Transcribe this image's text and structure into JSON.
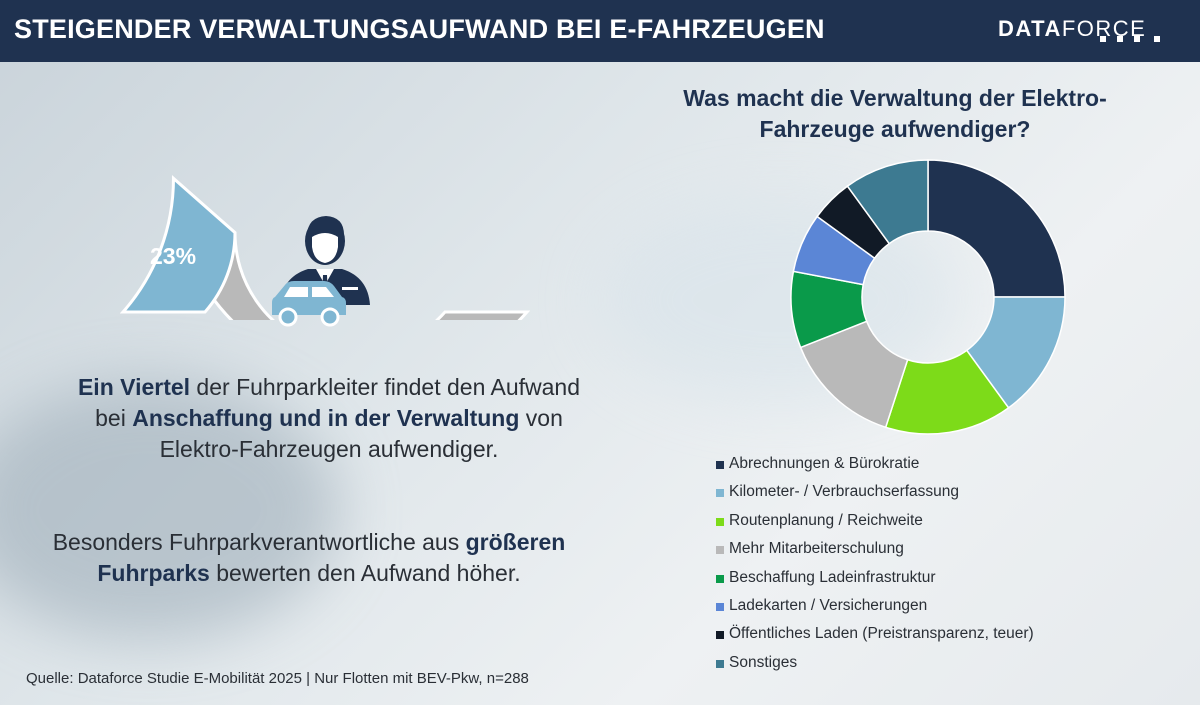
{
  "header": {
    "title": "STEIGENDER VERWALTUNGSAUFWAND BEI E-FAHRZEUGEN",
    "logo_bold": "DATA",
    "logo_light": "FORCE"
  },
  "gauge": {
    "value_percent": 23,
    "label": "23%",
    "colors": {
      "value": "#7fb6d2",
      "rest": "#b9b9b9",
      "outline": "#ffffff"
    }
  },
  "statement1": {
    "b1": "Ein Viertel",
    "t1": " der Fuhrparkleiter findet den Aufwand bei ",
    "b2": "Anschaffung und in der Verwaltung",
    "t2": " von Elektro-Fahrzeugen aufwendiger."
  },
  "statement2": {
    "t1": "Besonders Fuhrparkverantwortliche aus ",
    "b1": "größeren Fuhrparks",
    "t2": " bewerten den Aufwand höher."
  },
  "source": "Quelle: Dataforce Studie E-Mobilität 2025 | Nur Flotten mit BEV-Pkw, n=288",
  "chart_data": {
    "type": "pie",
    "subtype": "donut",
    "title": "Was macht die Verwaltung der Elektro-Fahrzeuge aufwendiger?",
    "legend_position": "bottom",
    "categories": [
      "Abrechnungen & Bürokratie",
      "Kilometer- / Verbrauchserfassung",
      "Routenplanung / Reichweite",
      "Mehr Mitarbeiterschulung",
      "Beschaffung Ladeinfrastruktur",
      "Ladekarten / Versicherungen",
      "Öffentliches Laden (Preistransparenz, teuer)",
      "Sonstiges"
    ],
    "values": [
      25,
      15,
      15,
      14,
      9,
      7,
      5,
      10
    ],
    "colors": [
      "#1f3250",
      "#7fb6d2",
      "#7ddb19",
      "#b9b9b9",
      "#0a9a4a",
      "#5b86d6",
      "#111a26",
      "#3d7a91"
    ]
  }
}
